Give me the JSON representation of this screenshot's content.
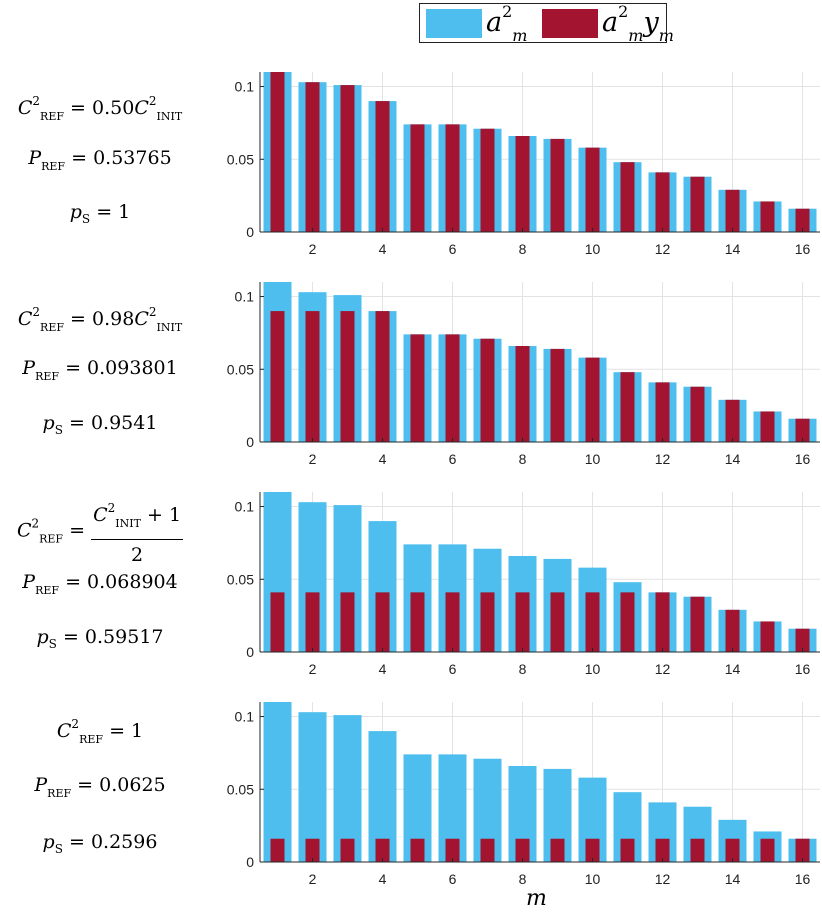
{
  "legend": {
    "item1": {
      "base": "a",
      "sup": "2",
      "sub": "m",
      "color": "#4DBEEE"
    },
    "item2": {
      "base": "a",
      "sup": "2",
      "sub": "m",
      "tail": "y",
      "tail_sub": "m",
      "color": "#A2142F"
    }
  },
  "panels": [
    {
      "c_ref": {
        "coef": "0.50"
      },
      "p_ref": "0.53765",
      "p_s": "1"
    },
    {
      "c_ref": {
        "coef": "0.98"
      },
      "p_ref": "0.093801",
      "p_s": "0.9541"
    },
    {
      "c_ref": {
        "frac_num_tail": "+ 1",
        "frac_den": "2"
      },
      "p_ref": "0.068904",
      "p_s": "0.59517"
    },
    {
      "c_ref": {
        "value": "1"
      },
      "p_ref": "0.0625",
      "p_s": "0.2596"
    }
  ],
  "labels": {
    "c_sym": "C",
    "p_sym": "P",
    "ps_sym": "p",
    "ps_sub": "S",
    "ref": "REF",
    "init": "INIT",
    "sq": "2",
    "equals": "="
  },
  "chart_data": {
    "type": "bar",
    "xlabel": "m",
    "x": [
      1,
      2,
      3,
      4,
      5,
      6,
      7,
      8,
      9,
      10,
      11,
      12,
      13,
      14,
      15,
      16
    ],
    "xticks": [
      2,
      4,
      6,
      8,
      10,
      12,
      14,
      16
    ],
    "yticks": [
      0,
      0.05,
      0.1
    ],
    "ytick_labels": [
      "0",
      "0.05",
      "0.1"
    ],
    "ylim": [
      0,
      0.11
    ],
    "xlim": [
      0.5,
      16.5
    ],
    "grid": true,
    "a2": [
      0.11,
      0.103,
      0.101,
      0.09,
      0.074,
      0.074,
      0.071,
      0.066,
      0.064,
      0.058,
      0.048,
      0.041,
      0.038,
      0.029,
      0.021,
      0.016
    ],
    "series_names": [
      "a_m^2",
      "a_m^2 y_m"
    ],
    "a2y": [
      [
        0.11,
        0.103,
        0.101,
        0.09,
        0.074,
        0.074,
        0.071,
        0.066,
        0.064,
        0.058,
        0.048,
        0.041,
        0.038,
        0.029,
        0.021,
        0.016
      ],
      [
        0.09,
        0.09,
        0.09,
        0.09,
        0.074,
        0.074,
        0.071,
        0.066,
        0.064,
        0.058,
        0.048,
        0.041,
        0.038,
        0.029,
        0.021,
        0.016
      ],
      [
        0.041,
        0.041,
        0.041,
        0.041,
        0.041,
        0.041,
        0.041,
        0.041,
        0.041,
        0.041,
        0.041,
        0.041,
        0.038,
        0.029,
        0.021,
        0.016
      ],
      [
        0.016,
        0.016,
        0.016,
        0.016,
        0.016,
        0.016,
        0.016,
        0.016,
        0.016,
        0.016,
        0.016,
        0.016,
        0.016,
        0.016,
        0.016,
        0.016
      ]
    ]
  }
}
